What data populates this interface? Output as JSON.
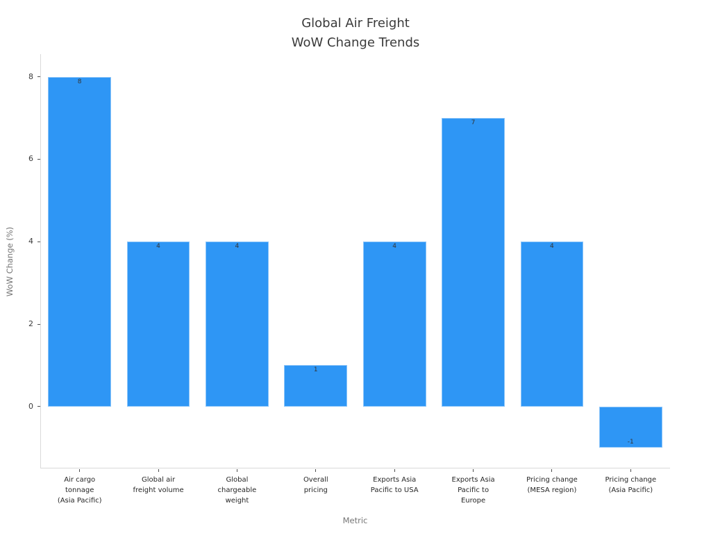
{
  "chart_data": {
    "type": "bar",
    "title": "Global Air Freight\nWoW Change Trends",
    "title_lines": [
      "Global Air Freight",
      "WoW Change Trends"
    ],
    "xlabel": "Metric",
    "ylabel": "WoW Change (%)",
    "categories": [
      "Air cargo tonnage (Asia Pacific)",
      "Global air freight volume",
      "Global chargeable weight",
      "Overall pricing",
      "Exports Asia Pacific to USA",
      "Exports Asia Pacific to Europe",
      "Pricing change (MESA region)",
      "Pricing change (Asia Pacific)"
    ],
    "category_lines": [
      [
        "Air cargo",
        "tonnage",
        "(Asia Pacific)"
      ],
      [
        "Global air",
        "freight volume"
      ],
      [
        "Global",
        "chargeable",
        "weight"
      ],
      [
        "Overall",
        "pricing"
      ],
      [
        "Exports Asia",
        "Pacific to USA"
      ],
      [
        "Exports Asia",
        "Pacific to",
        "Europe"
      ],
      [
        "Pricing change",
        "(MESA region)"
      ],
      [
        "Pricing change",
        "(Asia Pacific)"
      ]
    ],
    "values": [
      8,
      4,
      4,
      1,
      4,
      7,
      4,
      -1
    ],
    "bar_labels": [
      "8",
      "4",
      "4",
      "1",
      "4",
      "7",
      "4",
      "-1"
    ],
    "yticks": [
      0,
      2,
      4,
      6,
      8
    ],
    "ylim": [
      -1.5,
      8.55
    ],
    "grid": false,
    "legend": null
  },
  "colors": {
    "bar": "#2E96F5",
    "bar_edge": "rgba(255,255,255,0.45)",
    "title_text": "#3a3a3a",
    "tick_label": "#3a3a3a",
    "category_label": "#262626",
    "value_label": "#333333",
    "axis_label": "#757575",
    "spine": "#d9d9d9",
    "tick_mark": "#4d4d4d",
    "background": "#ffffff"
  }
}
